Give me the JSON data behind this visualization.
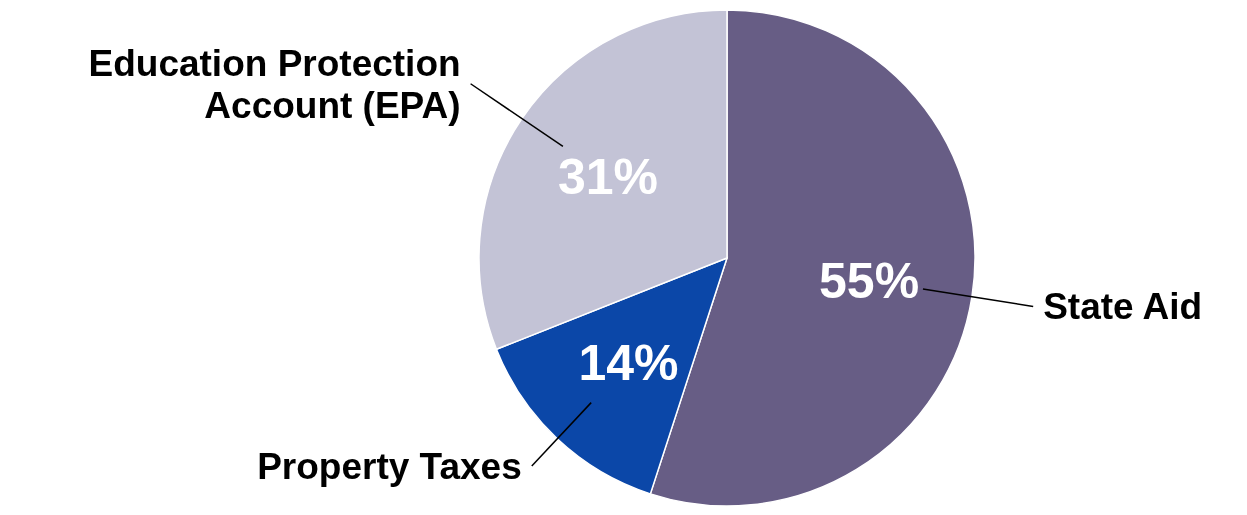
{
  "chart_data": {
    "type": "pie",
    "categories": [
      "State Aid",
      "Property Taxes",
      "Education Protection Account (EPA)"
    ],
    "values": [
      55,
      14,
      31
    ],
    "colors": [
      "#675d85",
      "#0b47a8",
      "#c3c3d6"
    ],
    "value_labels": [
      "55%",
      "14%",
      "31%"
    ]
  }
}
